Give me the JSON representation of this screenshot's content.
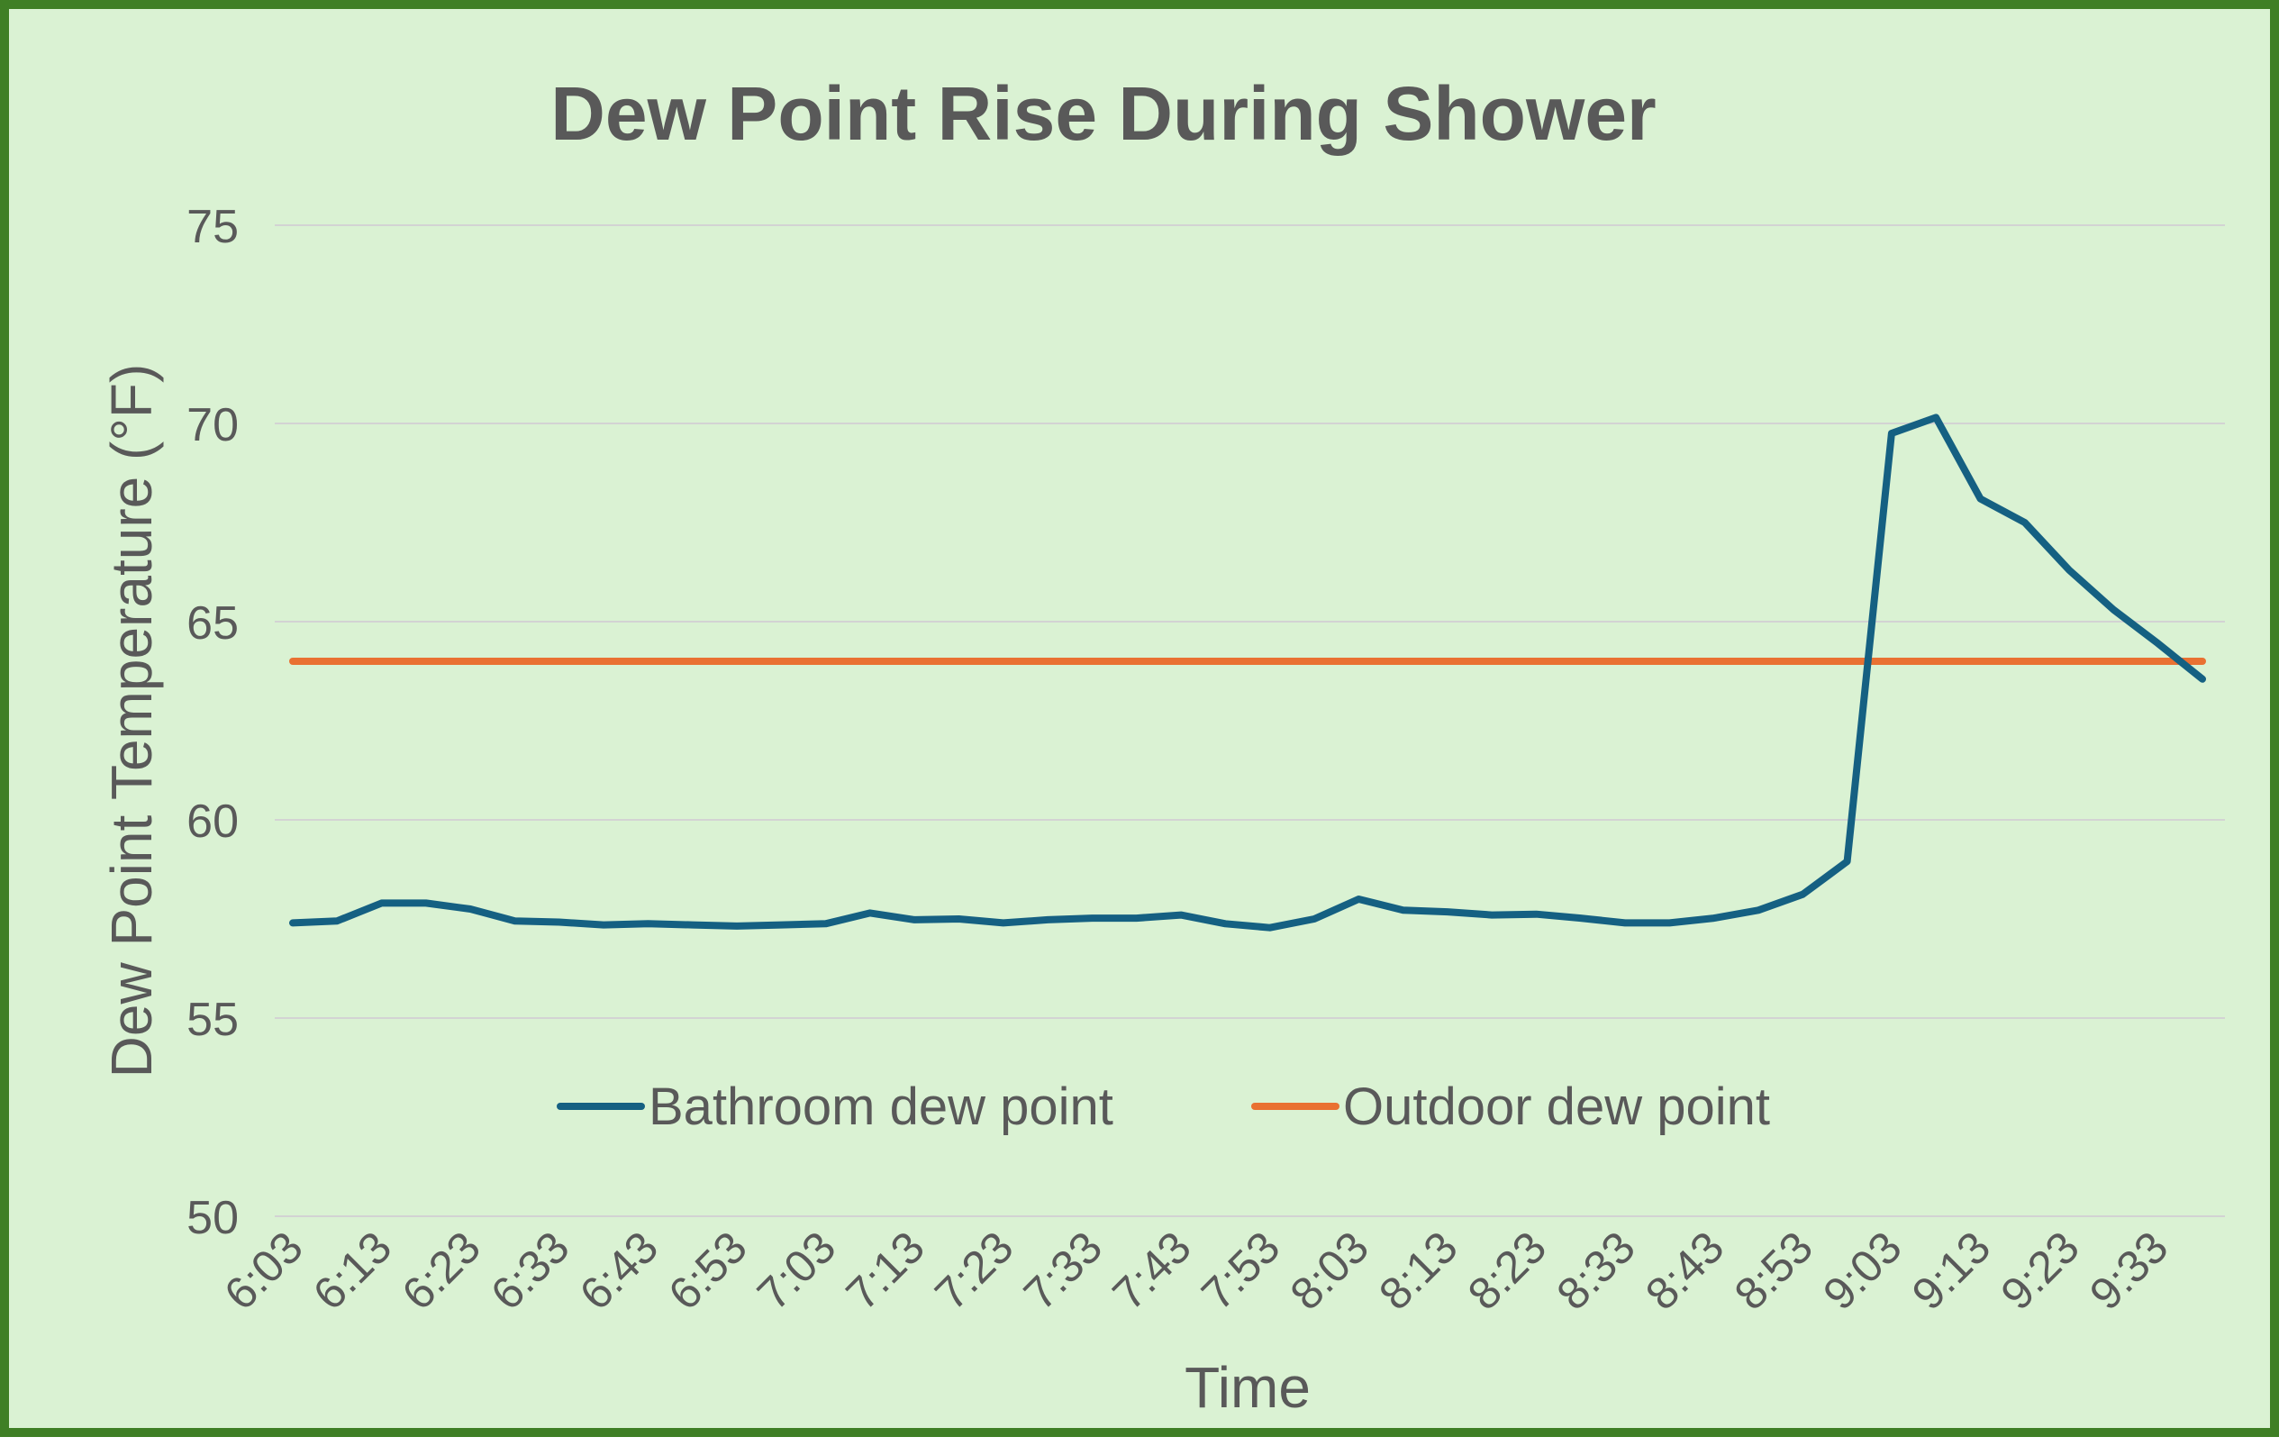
{
  "chart_data": {
    "type": "line",
    "title": "Dew Point Rise During Shower",
    "xlabel": "Time",
    "ylabel": "Dew Point Temperature (°F)",
    "ylim": [
      50,
      75
    ],
    "yticks": [
      50,
      55,
      60,
      65,
      70,
      75
    ],
    "grid": "horizontal",
    "legend_position": "bottom-center",
    "x": [
      "6:03",
      "6:08",
      "6:13",
      "6:18",
      "6:23",
      "6:28",
      "6:33",
      "6:38",
      "6:43",
      "6:48",
      "6:53",
      "6:58",
      "7:03",
      "7:08",
      "7:13",
      "7:18",
      "7:23",
      "7:28",
      "7:33",
      "7:38",
      "7:43",
      "7:48",
      "7:53",
      "7:58",
      "8:03",
      "8:08",
      "8:13",
      "8:18",
      "8:23",
      "8:28",
      "8:33",
      "8:38",
      "8:43",
      "8:48",
      "8:53",
      "8:58",
      "9:03",
      "9:08",
      "9:13",
      "9:18",
      "9:23",
      "9:28",
      "9:33",
      "9:38"
    ],
    "x_tick_labels": [
      "6:03",
      "6:13",
      "6:23",
      "6:33",
      "6:43",
      "6:53",
      "7:03",
      "7:13",
      "7:23",
      "7:33",
      "7:43",
      "7:53",
      "8:03",
      "8:13",
      "8:23",
      "8:33",
      "8:43",
      "8:53",
      "9:03",
      "9:13",
      "9:23",
      "9:33"
    ],
    "series": [
      {
        "name": "Bathroom dew point",
        "color": "#156082",
        "values": [
          57.4,
          57.45,
          57.9,
          57.9,
          57.75,
          57.45,
          57.42,
          57.35,
          57.38,
          57.35,
          57.32,
          57.35,
          57.38,
          57.65,
          57.48,
          57.5,
          57.4,
          57.48,
          57.52,
          57.52,
          57.6,
          57.38,
          57.28,
          57.5,
          58.0,
          57.72,
          57.68,
          57.6,
          57.62,
          57.52,
          57.4,
          57.4,
          57.52,
          57.72,
          58.12,
          58.95,
          69.75,
          70.15,
          68.1,
          67.5,
          66.3,
          65.3,
          64.45,
          63.55
        ]
      },
      {
        "name": "Outdoor dew point",
        "color": "#e97132",
        "values": [
          64,
          64,
          64,
          64,
          64,
          64,
          64,
          64,
          64,
          64,
          64,
          64,
          64,
          64,
          64,
          64,
          64,
          64,
          64,
          64,
          64,
          64,
          64,
          64,
          64,
          64,
          64,
          64,
          64,
          64,
          64,
          64,
          64,
          64,
          64,
          64,
          64,
          64,
          64,
          64,
          64,
          64,
          64,
          64
        ]
      }
    ]
  }
}
